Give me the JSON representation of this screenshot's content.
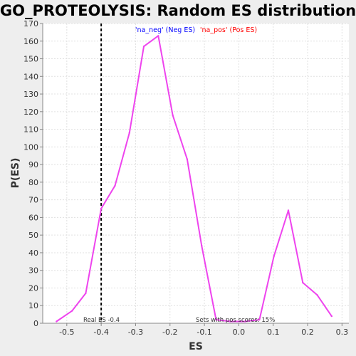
{
  "chart_data": {
    "type": "line",
    "title": "GO_PROTEOLYSIS: Random ES distribution",
    "xlabel": "ES",
    "ylabel": "P(ES)",
    "xlim": [
      -0.57,
      0.32
    ],
    "ylim": [
      0,
      170
    ],
    "x_ticks": [
      -0.5,
      -0.4,
      -0.3,
      -0.2,
      -0.1,
      0.0,
      0.1,
      0.2,
      0.3
    ],
    "x_tick_labels": [
      "-0.5",
      "-0.4",
      "-0.3",
      "-0.2",
      "-0.1",
      "0.0",
      "0.1",
      "0.2",
      "0.3"
    ],
    "y_ticks": [
      0,
      10,
      20,
      30,
      40,
      50,
      60,
      70,
      80,
      90,
      100,
      110,
      120,
      130,
      140,
      150,
      160,
      170
    ],
    "grid": true,
    "legend": {
      "position": "top-center",
      "entries": [
        {
          "label": "'na_neg' (Neg ES)",
          "color": "#0000ff"
        },
        {
          "label": "'na_pos' (Pos ES)",
          "color": "#ff0000"
        }
      ]
    },
    "series": [
      {
        "color": "#ee44ee",
        "x": [
          -0.53,
          -0.485,
          -0.445,
          -0.4,
          -0.36,
          -0.318,
          -0.276,
          -0.234,
          -0.192,
          -0.15,
          -0.108,
          -0.066,
          -0.024,
          0.018,
          0.06,
          0.102,
          0.144,
          0.186,
          0.228,
          0.27
        ],
        "y": [
          1,
          7,
          17,
          65,
          78,
          108,
          157,
          163,
          118,
          93,
          44,
          2,
          1,
          1,
          2,
          38,
          64,
          23,
          16,
          4
        ]
      }
    ],
    "annotations": [
      {
        "text": "Real ES -0.4",
        "x": -0.4
      },
      {
        "text": "Sets with pos scores: 15%"
      }
    ],
    "reference_line": {
      "x": -0.4,
      "style": "dashed",
      "color": "#000000"
    },
    "colors": {
      "background": "#eeeeee",
      "plot_background": "#ffffff",
      "grid": "#e0e0e0"
    }
  }
}
